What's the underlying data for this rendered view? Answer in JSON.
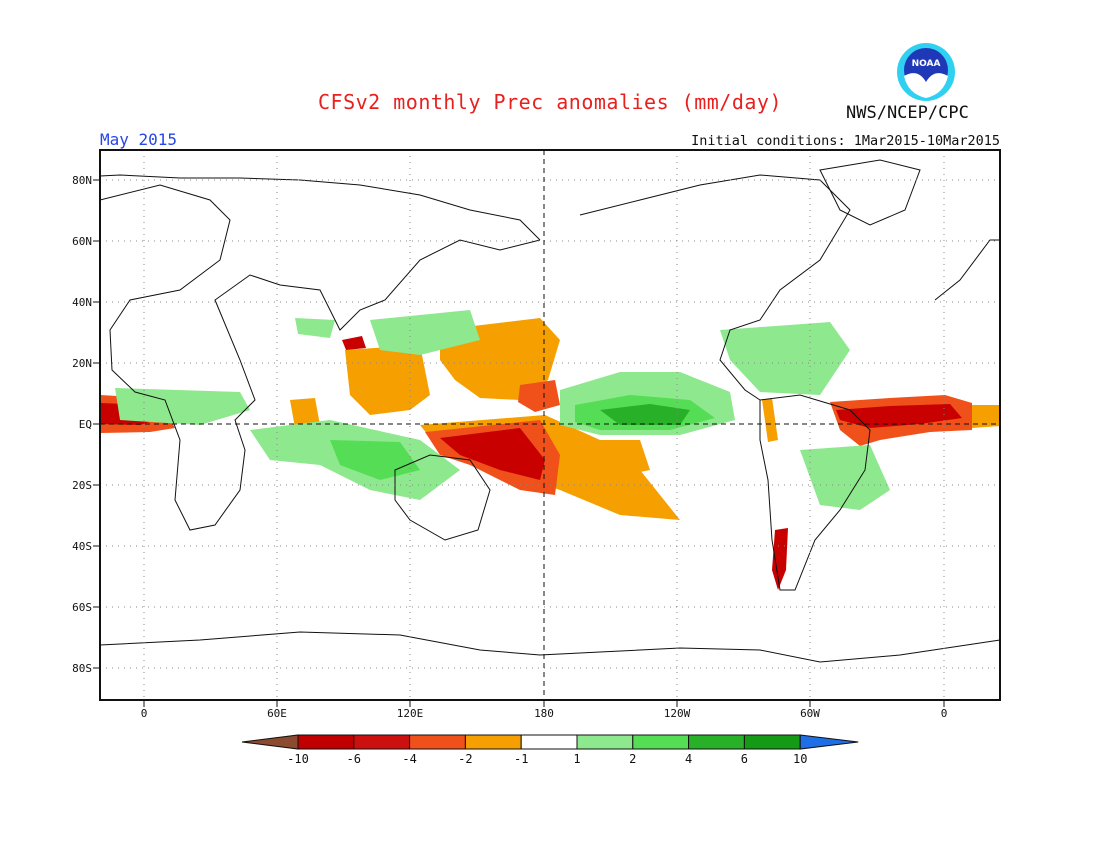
{
  "header": {
    "title": "CFSv2 monthly Prec anomalies (mm/day)",
    "agency": "NWS/NCEP/CPC",
    "logo_text": "NOAA",
    "month": "May 2015",
    "initial_conditions": "Initial conditions: 1Mar2015-10Mar2015"
  },
  "axes": {
    "lat_labels": [
      "80N",
      "60N",
      "40N",
      "20N",
      "EQ",
      "20S",
      "40S",
      "60S",
      "80S"
    ],
    "lon_labels": [
      "0",
      "60E",
      "120E",
      "180",
      "120W",
      "60W",
      "0"
    ]
  },
  "colorbar": {
    "labels": [
      "-10",
      "-6",
      "-4",
      "-2",
      "-1",
      "1",
      "2",
      "4",
      "6",
      "10"
    ],
    "colors": [
      "#8c4a2e",
      "#c00000",
      "#cc1010",
      "#f0501a",
      "#f5a000",
      "#ffffff",
      "#8ee88e",
      "#55dd55",
      "#28b028",
      "#159a15",
      "#1e6ee6"
    ]
  },
  "colors": {
    "title": "#e8201e",
    "month": "#2646e6",
    "dry_strong": "#c80000",
    "dry_med": "#f0501a",
    "dry_weak": "#f5a000",
    "wet_weak": "#8ee88e",
    "wet_med": "#55dd55",
    "wet_strong": "#28b028"
  }
}
